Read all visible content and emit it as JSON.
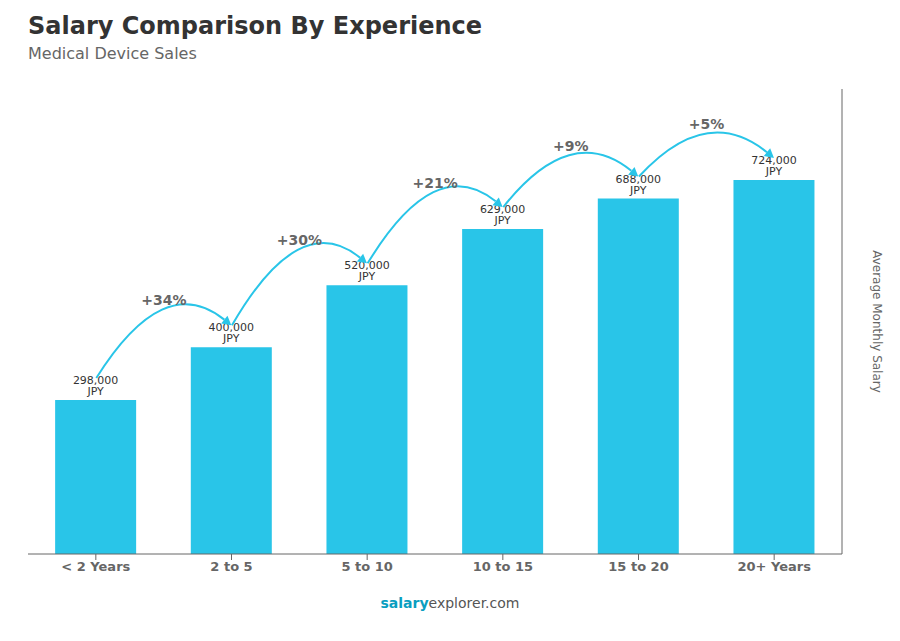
{
  "chart_data": {
    "type": "bar",
    "title": "Salary Comparison By Experience",
    "subtitle": "Medical Device Sales",
    "categories": [
      "< 2 Years",
      "2 to 5",
      "5 to 10",
      "10 to 15",
      "15 to 20",
      "20+ Years"
    ],
    "values": [
      298000,
      400000,
      520000,
      629000,
      688000,
      724000
    ],
    "value_labels": [
      "298,000 JPY",
      "400,000 JPY",
      "520,000 JPY",
      "629,000 JPY",
      "688,000 JPY",
      "724,000 JPY"
    ],
    "data_labels": true,
    "annotations": [
      "+34%",
      "+30%",
      "+21%",
      "+9%",
      "+5%"
    ],
    "ylabel": "Average Monthly Salary",
    "ylim": [
      0,
      900000
    ],
    "tick_labels": "x",
    "grid": false,
    "color": "#29c5e8",
    "footer": [
      "salary",
      "explorer.com"
    ]
  }
}
